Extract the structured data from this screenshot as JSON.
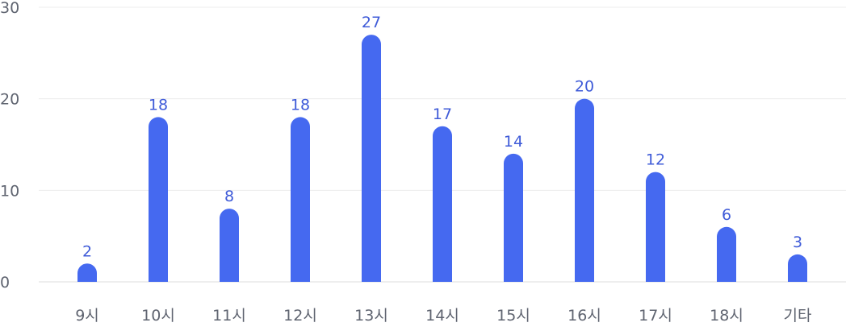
{
  "chart_data": {
    "type": "bar",
    "categories": [
      "9시",
      "10시",
      "11시",
      "12시",
      "13시",
      "14시",
      "15시",
      "16시",
      "17시",
      "18시",
      "기타"
    ],
    "values": [
      2,
      18,
      8,
      18,
      27,
      17,
      14,
      20,
      12,
      6,
      3
    ],
    "data_labels": [
      "2",
      "18",
      "8",
      "18",
      "27",
      "17",
      "14",
      "20",
      "12",
      "6",
      "3"
    ],
    "y_ticks": [
      0,
      10,
      20,
      30
    ],
    "ylim": [
      0,
      30
    ],
    "grid": true,
    "legend": "none",
    "bar_color": "#4569f0",
    "label_color": "#3f5bd8",
    "tick_color": "#5f6470",
    "grid_color": "#ececec"
  }
}
